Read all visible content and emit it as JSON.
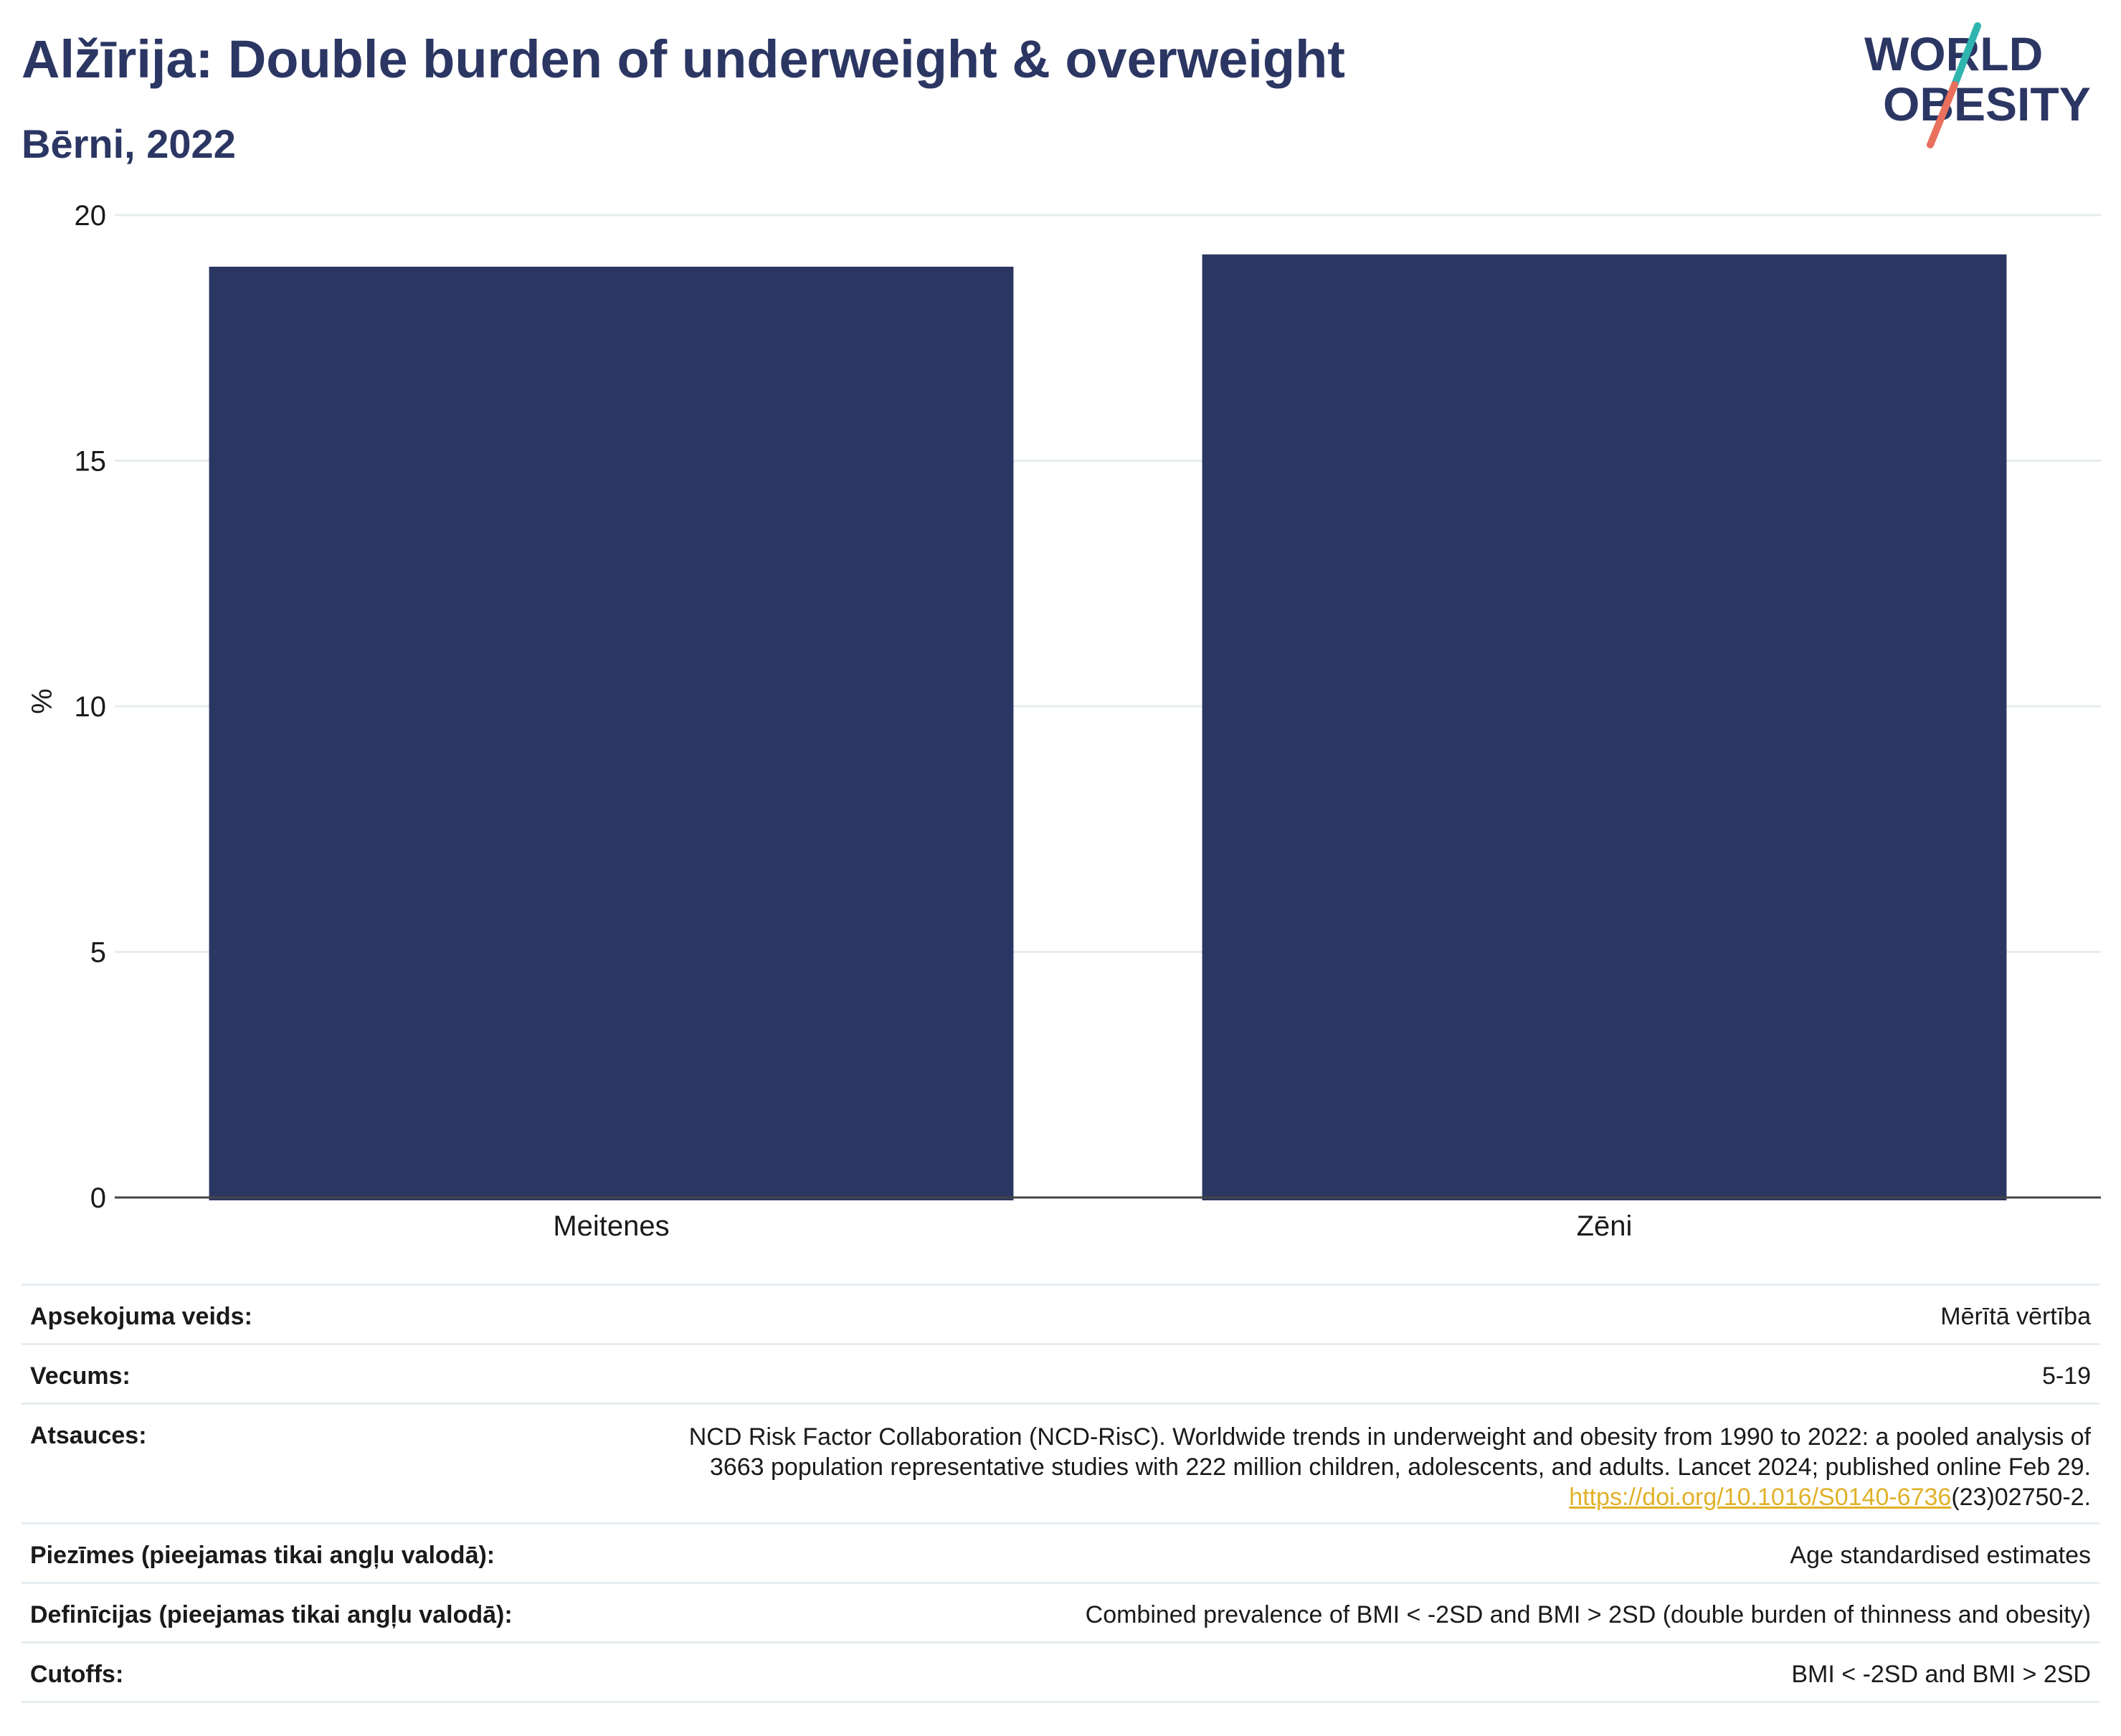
{
  "header": {
    "title": "Alžīrija: Double burden of underweight & overweight",
    "subtitle": "Bērni, 2022"
  },
  "logo": {
    "line1": "WORLD",
    "line2": "OBESITY",
    "accent_teal": "#2fb5b0",
    "accent_coral": "#e8705c",
    "text_color": "#2b3663"
  },
  "chart_data": {
    "type": "bar",
    "categories": [
      "Meitenes",
      "Zēni"
    ],
    "values": [
      18.95,
      19.2
    ],
    "ylabel": "%",
    "ylim": [
      0,
      20
    ],
    "yticks": [
      0,
      5,
      10,
      15,
      20
    ],
    "bar_color": "#2b3663",
    "grid": true
  },
  "meta": {
    "rows": [
      {
        "label": "Apsekojuma veids:",
        "value": "Mērītā vērtība"
      },
      {
        "label": "Vecums:",
        "value": "5-19"
      },
      {
        "label": "Piezīmes (pieejamas tikai angļu valodā):",
        "value": "Age standardised estimates"
      },
      {
        "label": "Definīcijas (pieejamas tikai angļu valodā):",
        "value": "Combined prevalence of BMI < -2SD and BMI > 2SD (double burden of thinness and obesity)"
      },
      {
        "label": "Cutoffs:",
        "value": "BMI < -2SD and BMI > 2SD"
      }
    ],
    "reference": {
      "label": "Atsauces:",
      "line1": "NCD Risk Factor Collaboration (NCD-RisC). Worldwide trends in underweight and obesity from 1990 to 2022: a pooled analysis of",
      "line2": "3663 population representative studies with 222 million children, adolescents, and adults. Lancet 2024; published online Feb 29.",
      "doi_link": "https://doi.org/10.1016/S0140-6736",
      "doi_rest": "(23)02750-2."
    }
  }
}
